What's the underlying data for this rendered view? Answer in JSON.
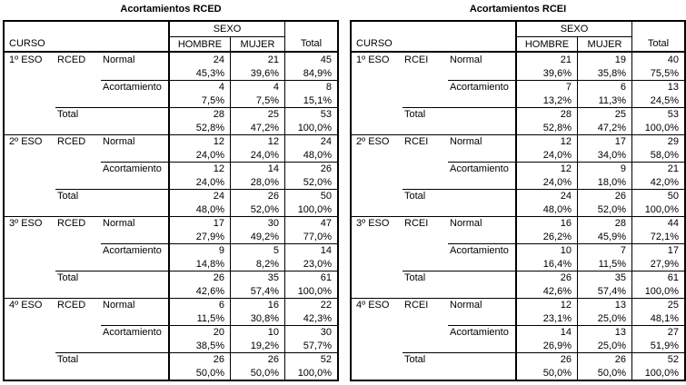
{
  "colors": {
    "border": "#000000",
    "text": "#000000",
    "background": "#ffffff"
  },
  "tables": [
    {
      "title": "Acortamientos RCED",
      "measure": "RCED",
      "header": {
        "curso": "CURSO",
        "sexo": "SEXO",
        "hombre": "HOMBRE",
        "mujer": "MUJER",
        "total": "Total"
      },
      "labels": {
        "normal": "Normal",
        "acortamiento": "Acortamiento",
        "total": "Total"
      },
      "groups": [
        {
          "curso": "1º ESO",
          "normal": {
            "counts": [
              "24",
              "21",
              "45"
            ],
            "pcts": [
              "45,3%",
              "39,6%",
              "84,9%"
            ]
          },
          "acortamiento": {
            "counts": [
              "4",
              "4",
              "8"
            ],
            "pcts": [
              "7,5%",
              "7,5%",
              "15,1%"
            ]
          },
          "total": {
            "counts": [
              "28",
              "25",
              "53"
            ],
            "pcts": [
              "52,8%",
              "47,2%",
              "100,0%"
            ]
          }
        },
        {
          "curso": "2º ESO",
          "normal": {
            "counts": [
              "12",
              "12",
              "24"
            ],
            "pcts": [
              "24,0%",
              "24,0%",
              "48,0%"
            ]
          },
          "acortamiento": {
            "counts": [
              "12",
              "14",
              "26"
            ],
            "pcts": [
              "24,0%",
              "28,0%",
              "52,0%"
            ]
          },
          "total": {
            "counts": [
              "24",
              "26",
              "50"
            ],
            "pcts": [
              "48,0%",
              "52,0%",
              "100,0%"
            ]
          }
        },
        {
          "curso": "3º ESO",
          "normal": {
            "counts": [
              "17",
              "30",
              "47"
            ],
            "pcts": [
              "27,9%",
              "49,2%",
              "77,0%"
            ]
          },
          "acortamiento": {
            "counts": [
              "9",
              "5",
              "14"
            ],
            "pcts": [
              "14,8%",
              "8,2%",
              "23,0%"
            ]
          },
          "total": {
            "counts": [
              "26",
              "35",
              "61"
            ],
            "pcts": [
              "42,6%",
              "57,4%",
              "100,0%"
            ]
          }
        },
        {
          "curso": "4º ESO",
          "normal": {
            "counts": [
              "6",
              "16",
              "22"
            ],
            "pcts": [
              "11,5%",
              "30,8%",
              "42,3%"
            ]
          },
          "acortamiento": {
            "counts": [
              "20",
              "10",
              "30"
            ],
            "pcts": [
              "38,5%",
              "19,2%",
              "57,7%"
            ]
          },
          "total": {
            "counts": [
              "26",
              "26",
              "52"
            ],
            "pcts": [
              "50,0%",
              "50,0%",
              "100,0%"
            ]
          }
        }
      ]
    },
    {
      "title": "Acortamientos RCEI",
      "measure": "RCEI",
      "header": {
        "curso": "CURSO",
        "sexo": "SEXO",
        "hombre": "HOMBRE",
        "mujer": "MUJER",
        "total": "Total"
      },
      "labels": {
        "normal": "Normal",
        "acortamiento": "Acortamiento",
        "total": "Total"
      },
      "groups": [
        {
          "curso": "1º ESO",
          "normal": {
            "counts": [
              "21",
              "19",
              "40"
            ],
            "pcts": [
              "39,6%",
              "35,8%",
              "75,5%"
            ]
          },
          "acortamiento": {
            "counts": [
              "7",
              "6",
              "13"
            ],
            "pcts": [
              "13,2%",
              "11,3%",
              "24,5%"
            ]
          },
          "total": {
            "counts": [
              "28",
              "25",
              "53"
            ],
            "pcts": [
              "52,8%",
              "47,2%",
              "100,0%"
            ]
          }
        },
        {
          "curso": "2º ESO",
          "normal": {
            "counts": [
              "12",
              "17",
              "29"
            ],
            "pcts": [
              "24,0%",
              "34,0%",
              "58,0%"
            ]
          },
          "acortamiento": {
            "counts": [
              "12",
              "9",
              "21"
            ],
            "pcts": [
              "24,0%",
              "18,0%",
              "42,0%"
            ]
          },
          "total": {
            "counts": [
              "24",
              "26",
              "50"
            ],
            "pcts": [
              "48,0%",
              "52,0%",
              "100,0%"
            ]
          }
        },
        {
          "curso": "3º ESO",
          "normal": {
            "counts": [
              "16",
              "28",
              "44"
            ],
            "pcts": [
              "26,2%",
              "45,9%",
              "72,1%"
            ]
          },
          "acortamiento": {
            "counts": [
              "10",
              "7",
              "17"
            ],
            "pcts": [
              "16,4%",
              "11,5%",
              "27,9%"
            ]
          },
          "total": {
            "counts": [
              "26",
              "35",
              "61"
            ],
            "pcts": [
              "42,6%",
              "57,4%",
              "100,0%"
            ]
          }
        },
        {
          "curso": "4º ESO",
          "normal": {
            "counts": [
              "12",
              "13",
              "25"
            ],
            "pcts": [
              "23,1%",
              "25,0%",
              "48,1%"
            ]
          },
          "acortamiento": {
            "counts": [
              "14",
              "13",
              "27"
            ],
            "pcts": [
              "26,9%",
              "25,0%",
              "51,9%"
            ]
          },
          "total": {
            "counts": [
              "26",
              "26",
              "52"
            ],
            "pcts": [
              "50,0%",
              "50,0%",
              "100,0%"
            ]
          }
        }
      ]
    }
  ]
}
